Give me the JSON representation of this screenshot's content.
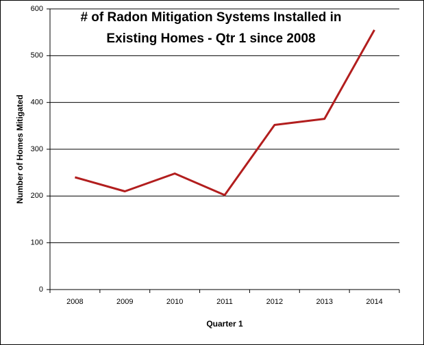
{
  "chart_data": {
    "type": "line",
    "title": [
      "# of Radon Mitigation Systems Installed in",
      "Existing Homes - Qtr 1 since 2008"
    ],
    "x_label": "Quarter 1",
    "y_label": "Number of Homes Mitigated",
    "categories": [
      "2008",
      "2009",
      "2010",
      "2011",
      "2012",
      "2013",
      "2014"
    ],
    "values": [
      240,
      210,
      248,
      202,
      352,
      365,
      555
    ],
    "color": "#b21e1e",
    "ylim": [
      0,
      600
    ],
    "yticks": [
      0,
      100,
      200,
      300,
      400,
      500,
      600
    ],
    "grid": true
  }
}
